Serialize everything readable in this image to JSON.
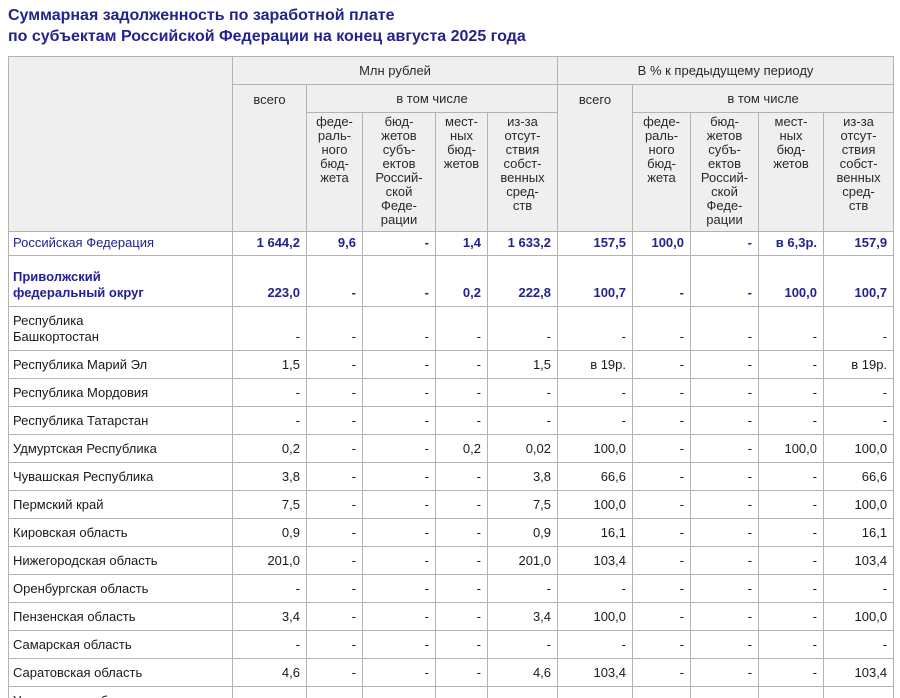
{
  "title": {
    "line1": "Суммарная задолженность по заработной плате",
    "line2": "по субъектам Российской Федерации на конец августа 2025 года"
  },
  "colors": {
    "title_navy": "#23238c",
    "emphasis_navy": "#23238c",
    "header_bg": "#efefef",
    "grid_border": "#b3b3b3"
  },
  "table": {
    "groups": [
      {
        "label": "Млн рублей"
      },
      {
        "label": "В % к предыдущему периоду"
      }
    ],
    "total_label": "всего",
    "including_label": "в том числе",
    "sub_columns": [
      "феде-\nраль-\nного\nбюд-\nжета",
      "бюд-\nжетов\nсубъ-\nектов\nРоссий-\nской\nФеде-\nрации",
      "мест-\nных\nбюд-\nжетов",
      "из-за\nотсут-\nствия\nсобст-\nвенных\nсред-\nств"
    ],
    "rows": [
      {
        "name": "Российская Федерация",
        "style": "federation",
        "values": [
          "1 644,2",
          "9,6",
          "-",
          "1,4",
          "1 633,2",
          "157,5",
          "100,0",
          "-",
          "в 6,3р.",
          "157,9"
        ]
      },
      {
        "name": "Приволжский\nфедеральный округ",
        "style": "district",
        "values": [
          "223,0",
          "-",
          "-",
          "0,2",
          "222,8",
          "100,7",
          "-",
          "-",
          "100,0",
          "100,7"
        ]
      },
      {
        "name": "Республика\nБашкортостан",
        "style": "region",
        "values": [
          "-",
          "-",
          "-",
          "-",
          "-",
          "-",
          "-",
          "-",
          "-",
          "-"
        ]
      },
      {
        "name": "Республика Марий Эл",
        "style": "region",
        "values": [
          "1,5",
          "-",
          "-",
          "-",
          "1,5",
          "в 19р.",
          "-",
          "-",
          "-",
          "в 19р."
        ]
      },
      {
        "name": "Республика Мордовия",
        "style": "region",
        "values": [
          "-",
          "-",
          "-",
          "-",
          "-",
          "-",
          "-",
          "-",
          "-",
          "-"
        ]
      },
      {
        "name": "Республика Татарстан",
        "style": "region",
        "values": [
          "-",
          "-",
          "-",
          "-",
          "-",
          "-",
          "-",
          "-",
          "-",
          "-"
        ]
      },
      {
        "name": "Удмуртская Республика",
        "style": "region",
        "values": [
          "0,2",
          "-",
          "-",
          "0,2",
          "0,02",
          "100,0",
          "-",
          "-",
          "100,0",
          "100,0"
        ]
      },
      {
        "name": "Чувашская Республика",
        "style": "region",
        "values": [
          "3,8",
          "-",
          "-",
          "-",
          "3,8",
          "66,6",
          "-",
          "-",
          "-",
          "66,6"
        ]
      },
      {
        "name": "Пермский край",
        "style": "region",
        "values": [
          "7,5",
          "-",
          "-",
          "-",
          "7,5",
          "100,0",
          "-",
          "-",
          "-",
          "100,0"
        ]
      },
      {
        "name": "Кировская область",
        "style": "region",
        "values": [
          "0,9",
          "-",
          "-",
          "-",
          "0,9",
          "16,1",
          "-",
          "-",
          "-",
          "16,1"
        ]
      },
      {
        "name": "Нижегородская область",
        "style": "region",
        "values": [
          "201,0",
          "-",
          "-",
          "-",
          "201,0",
          "103,4",
          "-",
          "-",
          "-",
          "103,4"
        ]
      },
      {
        "name": "Оренбургская область",
        "style": "region",
        "values": [
          "-",
          "-",
          "-",
          "-",
          "-",
          "-",
          "-",
          "-",
          "-",
          "-"
        ]
      },
      {
        "name": "Пензенская область",
        "style": "region",
        "values": [
          "3,4",
          "-",
          "-",
          "-",
          "3,4",
          "100,0",
          "-",
          "-",
          "-",
          "100,0"
        ]
      },
      {
        "name": "Самарская область",
        "style": "region",
        "values": [
          "-",
          "-",
          "-",
          "-",
          "-",
          "-",
          "-",
          "-",
          "-",
          "-"
        ]
      },
      {
        "name": "Саратовская область",
        "style": "region",
        "values": [
          "4,6",
          "-",
          "-",
          "-",
          "4,6",
          "103,4",
          "-",
          "-",
          "-",
          "103,4"
        ]
      },
      {
        "name": "Ульяновская область",
        "style": "region",
        "values": [
          "-",
          "-",
          "-",
          "-",
          "-",
          "-",
          "-",
          "-",
          "-",
          "-"
        ]
      }
    ]
  }
}
